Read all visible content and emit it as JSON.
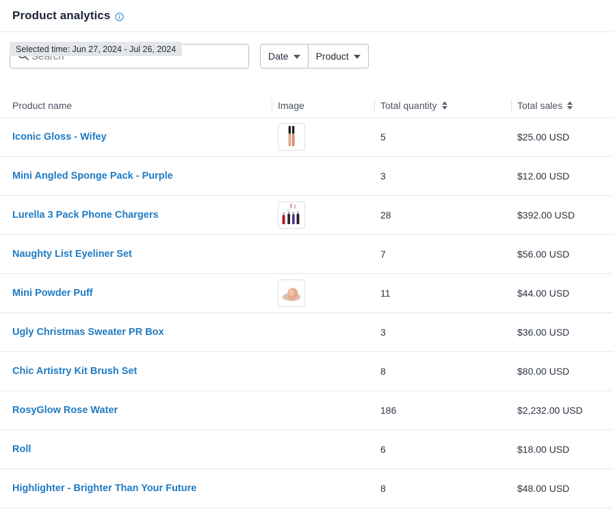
{
  "header": {
    "title": "Product analytics",
    "info_icon": "info-circle-icon"
  },
  "search": {
    "placeholder": "Search",
    "value": "",
    "icon": "search-icon"
  },
  "filters": [
    {
      "label": "Date",
      "icon": "caret-down-icon"
    },
    {
      "label": "Product",
      "icon": "caret-down-icon"
    }
  ],
  "selected_time": "Selected time: Jun 27, 2024 - Jul 26, 2024",
  "table": {
    "columns": {
      "name": "Product name",
      "image": "Image",
      "quantity": "Total quantity",
      "sales": "Total sales"
    },
    "rows": [
      {
        "name": "Iconic Gloss - Wifey",
        "image": "lip-gloss-thumbnail",
        "quantity": "5",
        "sales": "$25.00 USD"
      },
      {
        "name": "Mini Angled Sponge Pack - Purple",
        "image": "",
        "quantity": "3",
        "sales": "$12.00 USD"
      },
      {
        "name": "Lurella 3 Pack Phone Chargers",
        "image": "phone-chargers-thumbnail",
        "quantity": "28",
        "sales": "$392.00 USD"
      },
      {
        "name": "Naughty List Eyeliner Set",
        "image": "",
        "quantity": "7",
        "sales": "$56.00 USD"
      },
      {
        "name": "Mini Powder Puff",
        "image": "powder-puff-thumbnail",
        "quantity": "11",
        "sales": "$44.00 USD"
      },
      {
        "name": "Ugly Christmas Sweater PR Box",
        "image": "",
        "quantity": "3",
        "sales": "$36.00 USD"
      },
      {
        "name": "Chic Artistry Kit Brush Set",
        "image": "",
        "quantity": "8",
        "sales": "$80.00 USD"
      },
      {
        "name": "RosyGlow Rose Water",
        "image": "",
        "quantity": "186",
        "sales": "$2,232.00 USD"
      },
      {
        "name": "Roll",
        "image": "",
        "quantity": "6",
        "sales": "$18.00 USD"
      },
      {
        "name": "Highlighter - Brighter Than Your Future",
        "image": "",
        "quantity": "8",
        "sales": "$48.00 USD"
      }
    ]
  },
  "colors": {
    "link": "#1f7bc4",
    "info_icon": "#2b8bd6",
    "border": "#b8bec6",
    "badge_bg": "#e4e6e9"
  }
}
